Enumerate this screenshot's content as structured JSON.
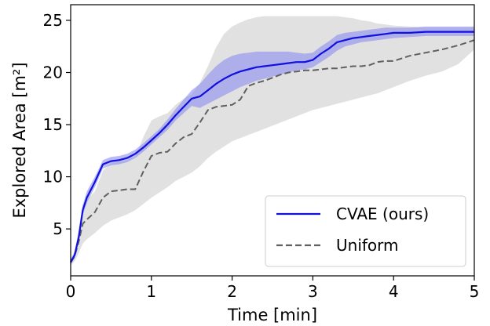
{
  "chart_data": {
    "type": "line",
    "xlabel": "Time [min]",
    "ylabel": "Explored Area [m²]",
    "xlim": [
      0,
      5
    ],
    "ylim": [
      0.5,
      26.5
    ],
    "x_ticks": [
      "0",
      "1",
      "2",
      "3",
      "4",
      "5"
    ],
    "y_ticks": [
      "5",
      "10",
      "15",
      "20",
      "25"
    ],
    "grid": false,
    "legend_position": "bottom-right",
    "series": [
      {
        "name": "CVAE (ours)",
        "color": "#1010e0",
        "band_color": "#8c8cf0",
        "style": "solid",
        "x": [
          0,
          0.05,
          0.1,
          0.15,
          0.2,
          0.3,
          0.4,
          0.5,
          0.6,
          0.7,
          0.8,
          0.9,
          1.0,
          1.1,
          1.2,
          1.3,
          1.4,
          1.5,
          1.6,
          1.7,
          1.8,
          1.9,
          2.0,
          2.1,
          2.2,
          2.3,
          2.4,
          2.5,
          2.6,
          2.7,
          2.8,
          2.9,
          3.0,
          3.1,
          3.2,
          3.3,
          3.4,
          3.5,
          3.6,
          3.7,
          3.8,
          3.9,
          4.0,
          4.2,
          4.4,
          4.6,
          4.8,
          5.0
        ],
        "y": [
          1.8,
          2.5,
          4.2,
          6.8,
          8.0,
          9.5,
          11.2,
          11.5,
          11.6,
          11.8,
          12.2,
          12.8,
          13.5,
          14.2,
          15.0,
          15.9,
          16.7,
          17.5,
          17.7,
          18.3,
          18.9,
          19.4,
          19.8,
          20.1,
          20.3,
          20.5,
          20.6,
          20.7,
          20.8,
          20.9,
          21.0,
          21.0,
          21.2,
          21.8,
          22.3,
          22.9,
          23.1,
          23.3,
          23.4,
          23.5,
          23.6,
          23.7,
          23.8,
          23.8,
          23.9,
          23.9,
          23.9,
          23.9
        ],
        "band_lower": [
          1.6,
          2.2,
          3.8,
          6.3,
          7.5,
          9.0,
          10.8,
          11.1,
          11.2,
          11.4,
          11.8,
          12.4,
          13.1,
          13.8,
          14.5,
          15.4,
          16.1,
          16.8,
          16.6,
          17.0,
          17.4,
          17.8,
          18.2,
          18.6,
          18.9,
          19.2,
          19.4,
          19.6,
          19.8,
          20.0,
          20.2,
          20.3,
          20.5,
          21.0,
          21.5,
          22.1,
          22.5,
          22.7,
          22.9,
          23.0,
          23.1,
          23.2,
          23.3,
          23.4,
          23.5,
          23.5,
          23.5,
          23.5
        ],
        "band_upper": [
          2.0,
          2.8,
          4.7,
          7.3,
          8.6,
          10.0,
          11.6,
          11.9,
          12.0,
          12.2,
          12.6,
          13.2,
          13.9,
          14.6,
          15.5,
          16.5,
          17.4,
          18.3,
          18.9,
          19.8,
          20.6,
          21.2,
          21.6,
          21.8,
          21.9,
          22.0,
          22.0,
          22.0,
          22.0,
          22.0,
          21.9,
          21.8,
          21.9,
          22.5,
          23.0,
          23.6,
          23.8,
          23.9,
          24.0,
          24.1,
          24.2,
          24.3,
          24.3,
          24.3,
          24.4,
          24.4,
          24.4,
          24.4
        ]
      },
      {
        "name": "Uniform",
        "color": "#606060",
        "band_color": "#dcdcdc",
        "style": "dashed",
        "x": [
          0,
          0.05,
          0.1,
          0.15,
          0.2,
          0.3,
          0.4,
          0.5,
          0.6,
          0.7,
          0.8,
          0.9,
          1.0,
          1.1,
          1.2,
          1.3,
          1.4,
          1.5,
          1.6,
          1.7,
          1.8,
          1.9,
          2.0,
          2.1,
          2.2,
          2.3,
          2.4,
          2.5,
          2.6,
          2.7,
          2.8,
          2.9,
          3.0,
          3.1,
          3.2,
          3.3,
          3.4,
          3.5,
          3.6,
          3.7,
          3.8,
          3.9,
          4.0,
          4.2,
          4.4,
          4.6,
          4.8,
          5.0
        ],
        "y": [
          1.8,
          2.4,
          3.8,
          5.5,
          5.9,
          6.6,
          8.0,
          8.6,
          8.7,
          8.8,
          8.8,
          10.5,
          12.0,
          12.3,
          12.4,
          13.2,
          13.8,
          14.1,
          15.2,
          16.4,
          16.7,
          16.8,
          16.9,
          17.4,
          18.7,
          19.0,
          19.2,
          19.5,
          19.8,
          20.0,
          20.1,
          20.2,
          20.2,
          20.3,
          20.4,
          20.4,
          20.5,
          20.6,
          20.6,
          20.7,
          21.0,
          21.1,
          21.1,
          21.6,
          21.9,
          22.2,
          22.6,
          23.1
        ],
        "band_lower": [
          1.5,
          1.9,
          2.7,
          3.6,
          4.0,
          4.6,
          5.3,
          5.8,
          6.1,
          6.4,
          6.8,
          7.4,
          8.0,
          8.5,
          9.0,
          9.6,
          10.0,
          10.4,
          11.0,
          11.8,
          12.4,
          12.9,
          13.4,
          13.7,
          14.0,
          14.3,
          14.6,
          14.9,
          15.2,
          15.5,
          15.8,
          16.1,
          16.4,
          16.6,
          16.8,
          17.0,
          17.2,
          17.4,
          17.6,
          17.8,
          18.0,
          18.3,
          18.6,
          19.2,
          19.7,
          20.1,
          20.8,
          22.2
        ],
        "band_upper": [
          2.1,
          2.9,
          5.0,
          7.3,
          7.8,
          8.6,
          10.6,
          11.3,
          11.4,
          11.6,
          11.9,
          13.8,
          15.4,
          15.8,
          16.1,
          16.9,
          17.5,
          17.9,
          19.0,
          20.6,
          22.4,
          23.7,
          24.4,
          24.8,
          25.1,
          25.3,
          25.4,
          25.4,
          25.4,
          25.4,
          25.4,
          25.4,
          25.4,
          25.4,
          25.4,
          25.4,
          25.3,
          25.2,
          25.0,
          24.9,
          24.7,
          24.6,
          24.5,
          24.4,
          24.3,
          24.3,
          24.3,
          24.3
        ]
      }
    ]
  }
}
